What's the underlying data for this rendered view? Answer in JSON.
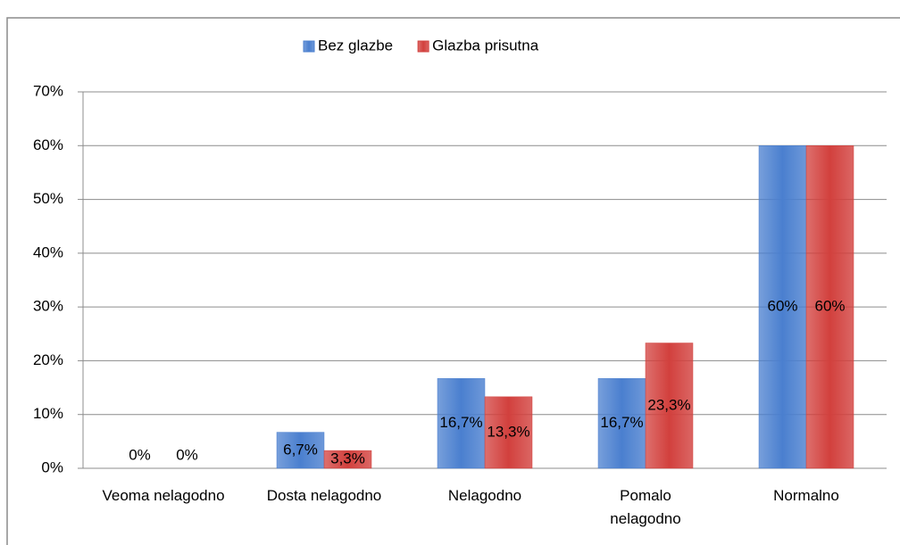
{
  "chart_data": {
    "type": "bar",
    "categories": [
      "Veoma nelagodno",
      "Dosta nelagodno",
      "Nelagodno",
      "Pomalo nelagodno",
      "Normalno"
    ],
    "series": [
      {
        "name": "Bez glazbe",
        "color": "#4a7fcf",
        "values": [
          0,
          6.7,
          16.7,
          16.7,
          60
        ],
        "value_labels": [
          "0%",
          "6,7%",
          "16,7%",
          "16,7%",
          "60%"
        ]
      },
      {
        "name": "Glazba prisutna",
        "color": "#d2403d",
        "values": [
          0,
          3.3,
          13.3,
          23.3,
          60
        ],
        "value_labels": [
          "0%",
          "3,3%",
          "13,3%",
          "23,3%",
          "60%"
        ]
      }
    ],
    "ylim": [
      0,
      70
    ],
    "yticks": [
      {
        "value": 0,
        "label": "0%"
      },
      {
        "value": 10,
        "label": "10%"
      },
      {
        "value": 20,
        "label": "20%"
      },
      {
        "value": 30,
        "label": "30%"
      },
      {
        "value": 40,
        "label": "40%"
      },
      {
        "value": 50,
        "label": "50%"
      },
      {
        "value": 60,
        "label": "60%"
      },
      {
        "value": 70,
        "label": "70%"
      }
    ],
    "grid": true,
    "legend": "top"
  }
}
